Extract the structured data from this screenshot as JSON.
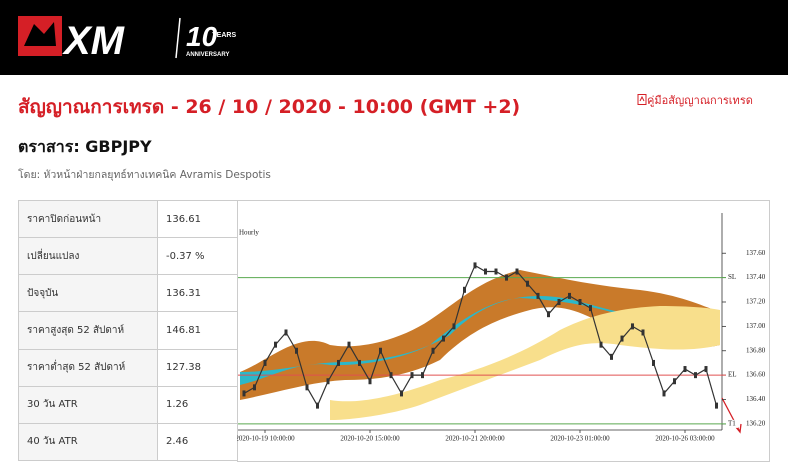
{
  "header": {
    "logo": "XM",
    "years_number": "10",
    "years": "YEARS",
    "anniversary": "ANNIVERSARY"
  },
  "title": "สัญญาณการเทรด - 26 / 10 / 2020 - 10:00 (GMT +2)",
  "guide_link": "คู่มือสัญญาณการเทรด",
  "instrument": "ตราสาร: GBPJPY",
  "author": "โดย: หัวหน้าฝ่ายกลยุทธ์ทางเทคนิค Avramis Despotis",
  "table": {
    "rows": [
      [
        "ราคาปิดก่อนหน้า",
        "136.61"
      ],
      [
        "เปลี่ยนแปลง",
        "-0.37 %"
      ],
      [
        "ปัจจุบัน",
        "136.31"
      ],
      [
        "ราคาสูงสุด 52 สัปดาห์",
        "146.81"
      ],
      [
        "ราคาต่ำสุด 52 สัปดาห์",
        "127.38"
      ],
      [
        "30 วัน ATR",
        "1.26"
      ],
      [
        "40 วัน ATR",
        "2.46"
      ]
    ]
  },
  "chart_data": {
    "type": "line",
    "subtitle": "Hourly",
    "categories": [
      null,
      null,
      "2020-10-19 10:00:00",
      null,
      null,
      null,
      null,
      null,
      null,
      null,
      null,
      null,
      "2020-10-20 15:00:00",
      null,
      null,
      null,
      null,
      null,
      null,
      null,
      null,
      null,
      "2020-10-21 20:00:00",
      null,
      null,
      null,
      null,
      null,
      null,
      null,
      null,
      null,
      "2020-10-23 01:00:00",
      null,
      null,
      null,
      null,
      null,
      null,
      null,
      null,
      null,
      "2020-10-26 03:00:00",
      null,
      null,
      null
    ],
    "series": [
      {
        "color": "#333333",
        "values": [
          136.45,
          136.5,
          136.7,
          136.85,
          136.95,
          136.8,
          136.5,
          136.35,
          136.55,
          136.7,
          136.85,
          136.7,
          136.55,
          136.8,
          136.6,
          136.45,
          136.6,
          136.6,
          136.8,
          136.9,
          137.0,
          137.3,
          137.5,
          137.45,
          137.45,
          137.4,
          137.45,
          137.35,
          137.25,
          137.1,
          137.2,
          137.25,
          137.2,
          137.15,
          136.85,
          136.75,
          136.9,
          137.0,
          136.95,
          136.7,
          136.45,
          136.55,
          136.65,
          136.6,
          136.65,
          136.35
        ]
      }
    ],
    "levels": [
      {
        "label": "SL",
        "value": 137.4,
        "color": "#5aa94f"
      },
      {
        "label": "EL",
        "value": 136.6,
        "color": "#e05050"
      },
      {
        "label": "T1",
        "value": 136.2,
        "color": "#5aa94f"
      }
    ],
    "ylim": [
      136.15,
      137.93
    ],
    "yticks": [
      {
        "value": 136.2,
        "label": "136.20"
      },
      {
        "value": 136.4,
        "label": "136.40"
      },
      {
        "value": 136.6,
        "label": "136.60"
      },
      {
        "value": 136.8,
        "label": "136.80"
      },
      {
        "value": 137.0,
        "label": "137.00"
      },
      {
        "value": 137.2,
        "label": "137.20"
      },
      {
        "value": 137.4,
        "label": "137.40"
      },
      {
        "value": 137.6,
        "label": "137.60"
      }
    ]
  }
}
